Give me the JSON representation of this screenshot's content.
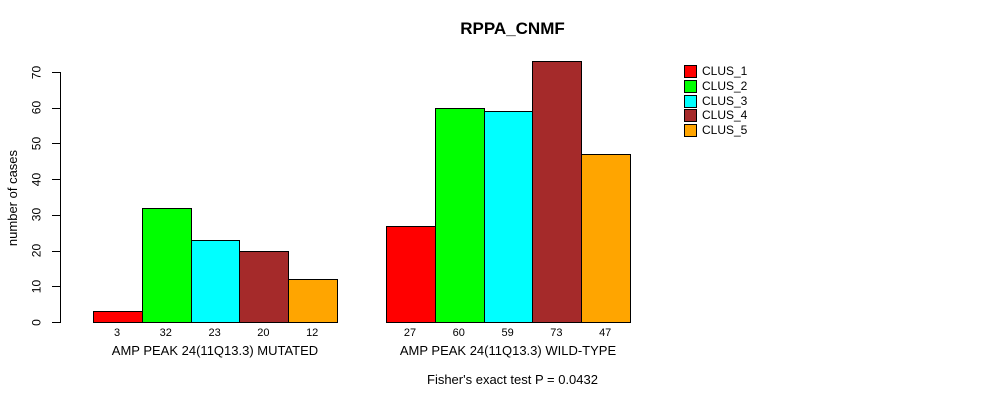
{
  "chart_data": {
    "type": "bar",
    "title": "RPPA_CNMF",
    "ylabel": "number of cases",
    "xlabel": "",
    "ylim": [
      0,
      70
    ],
    "yticks": [
      0,
      10,
      20,
      30,
      40,
      50,
      60,
      70
    ],
    "grid": false,
    "legend_position": "right",
    "categories": [
      "AMP PEAK 24(11Q13.3) MUTATED",
      "AMP PEAK 24(11Q13.3) WILD-TYPE"
    ],
    "series": [
      {
        "name": "CLUS_1",
        "color": "#FF0000",
        "values": [
          3,
          27
        ]
      },
      {
        "name": "CLUS_2",
        "color": "#00FF00",
        "values": [
          32,
          60
        ]
      },
      {
        "name": "CLUS_3",
        "color": "#00FFFF",
        "values": [
          23,
          59
        ]
      },
      {
        "name": "CLUS_4",
        "color": "#A52A2A",
        "values": [
          20,
          73
        ]
      },
      {
        "name": "CLUS_5",
        "color": "#FFA500",
        "values": [
          12,
          47
        ]
      }
    ],
    "bar_value_labels": [
      [
        3,
        32,
        23,
        20,
        12
      ],
      [
        27,
        60,
        59,
        73,
        47
      ]
    ],
    "annotation": "Fisher's exact test P = 0.0432"
  }
}
